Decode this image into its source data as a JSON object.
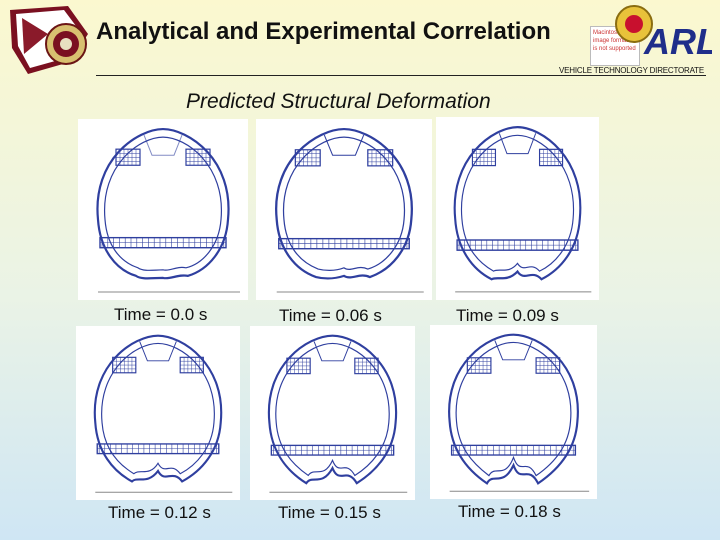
{
  "header": {
    "title": "Analytical and Experimental Correlation",
    "directorate": "VEHICLE TECHNOLOGY DIRECTORATE",
    "placeholder_lines": [
      "Macintosh PICT",
      "image format",
      "is not supported"
    ],
    "arl_text": "ARL"
  },
  "slide": {
    "heading": "Predicted Structural Deformation"
  },
  "panels": [
    {
      "caption": "Time = 0.0 s"
    },
    {
      "caption": "Time = 0.06 s"
    },
    {
      "caption": "Time = 0.09 s"
    },
    {
      "caption": "Time = 0.12 s"
    },
    {
      "caption": "Time = 0.15 s"
    },
    {
      "caption": "Time = 0.18 s"
    }
  ],
  "colors": {
    "mesh": "#2f3f9f",
    "accent": "#c8102e"
  }
}
